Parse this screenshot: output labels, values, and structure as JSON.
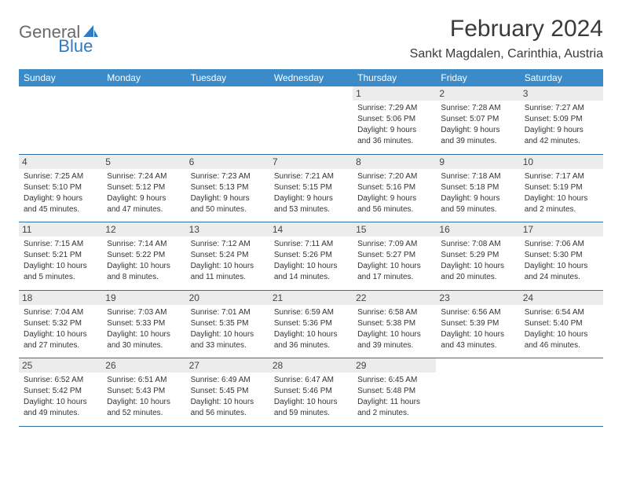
{
  "colors": {
    "header_bg": "#3b8bc9",
    "header_text": "#ffffff",
    "daynum_bg": "#ececec",
    "sep_line": "#2f6fa3",
    "title_color": "#3a3a3a",
    "logo_gray": "#6a6a6a",
    "logo_blue": "#2f7bbf",
    "body_text": "#333333",
    "page_bg": "#ffffff"
  },
  "typography": {
    "title_fontsize": 30,
    "location_fontsize": 16,
    "dow_fontsize": 12,
    "daynum_fontsize": 12,
    "info_fontsize": 10,
    "logo_fontsize": 22
  },
  "logo": {
    "part1": "General",
    "part2": "Blue"
  },
  "title": "February 2024",
  "location": "Sankt Magdalen, Carinthia, Austria",
  "dow": [
    "Sunday",
    "Monday",
    "Tuesday",
    "Wednesday",
    "Thursday",
    "Friday",
    "Saturday"
  ],
  "weeks": [
    [
      null,
      null,
      null,
      null,
      {
        "n": "1",
        "sr": "Sunrise: 7:29 AM",
        "ss": "Sunset: 5:06 PM",
        "d1": "Daylight: 9 hours",
        "d2": "and 36 minutes."
      },
      {
        "n": "2",
        "sr": "Sunrise: 7:28 AM",
        "ss": "Sunset: 5:07 PM",
        "d1": "Daylight: 9 hours",
        "d2": "and 39 minutes."
      },
      {
        "n": "3",
        "sr": "Sunrise: 7:27 AM",
        "ss": "Sunset: 5:09 PM",
        "d1": "Daylight: 9 hours",
        "d2": "and 42 minutes."
      }
    ],
    [
      {
        "n": "4",
        "sr": "Sunrise: 7:25 AM",
        "ss": "Sunset: 5:10 PM",
        "d1": "Daylight: 9 hours",
        "d2": "and 45 minutes."
      },
      {
        "n": "5",
        "sr": "Sunrise: 7:24 AM",
        "ss": "Sunset: 5:12 PM",
        "d1": "Daylight: 9 hours",
        "d2": "and 47 minutes."
      },
      {
        "n": "6",
        "sr": "Sunrise: 7:23 AM",
        "ss": "Sunset: 5:13 PM",
        "d1": "Daylight: 9 hours",
        "d2": "and 50 minutes."
      },
      {
        "n": "7",
        "sr": "Sunrise: 7:21 AM",
        "ss": "Sunset: 5:15 PM",
        "d1": "Daylight: 9 hours",
        "d2": "and 53 minutes."
      },
      {
        "n": "8",
        "sr": "Sunrise: 7:20 AM",
        "ss": "Sunset: 5:16 PM",
        "d1": "Daylight: 9 hours",
        "d2": "and 56 minutes."
      },
      {
        "n": "9",
        "sr": "Sunrise: 7:18 AM",
        "ss": "Sunset: 5:18 PM",
        "d1": "Daylight: 9 hours",
        "d2": "and 59 minutes."
      },
      {
        "n": "10",
        "sr": "Sunrise: 7:17 AM",
        "ss": "Sunset: 5:19 PM",
        "d1": "Daylight: 10 hours",
        "d2": "and 2 minutes."
      }
    ],
    [
      {
        "n": "11",
        "sr": "Sunrise: 7:15 AM",
        "ss": "Sunset: 5:21 PM",
        "d1": "Daylight: 10 hours",
        "d2": "and 5 minutes."
      },
      {
        "n": "12",
        "sr": "Sunrise: 7:14 AM",
        "ss": "Sunset: 5:22 PM",
        "d1": "Daylight: 10 hours",
        "d2": "and 8 minutes."
      },
      {
        "n": "13",
        "sr": "Sunrise: 7:12 AM",
        "ss": "Sunset: 5:24 PM",
        "d1": "Daylight: 10 hours",
        "d2": "and 11 minutes."
      },
      {
        "n": "14",
        "sr": "Sunrise: 7:11 AM",
        "ss": "Sunset: 5:26 PM",
        "d1": "Daylight: 10 hours",
        "d2": "and 14 minutes."
      },
      {
        "n": "15",
        "sr": "Sunrise: 7:09 AM",
        "ss": "Sunset: 5:27 PM",
        "d1": "Daylight: 10 hours",
        "d2": "and 17 minutes."
      },
      {
        "n": "16",
        "sr": "Sunrise: 7:08 AM",
        "ss": "Sunset: 5:29 PM",
        "d1": "Daylight: 10 hours",
        "d2": "and 20 minutes."
      },
      {
        "n": "17",
        "sr": "Sunrise: 7:06 AM",
        "ss": "Sunset: 5:30 PM",
        "d1": "Daylight: 10 hours",
        "d2": "and 24 minutes."
      }
    ],
    [
      {
        "n": "18",
        "sr": "Sunrise: 7:04 AM",
        "ss": "Sunset: 5:32 PM",
        "d1": "Daylight: 10 hours",
        "d2": "and 27 minutes."
      },
      {
        "n": "19",
        "sr": "Sunrise: 7:03 AM",
        "ss": "Sunset: 5:33 PM",
        "d1": "Daylight: 10 hours",
        "d2": "and 30 minutes."
      },
      {
        "n": "20",
        "sr": "Sunrise: 7:01 AM",
        "ss": "Sunset: 5:35 PM",
        "d1": "Daylight: 10 hours",
        "d2": "and 33 minutes."
      },
      {
        "n": "21",
        "sr": "Sunrise: 6:59 AM",
        "ss": "Sunset: 5:36 PM",
        "d1": "Daylight: 10 hours",
        "d2": "and 36 minutes."
      },
      {
        "n": "22",
        "sr": "Sunrise: 6:58 AM",
        "ss": "Sunset: 5:38 PM",
        "d1": "Daylight: 10 hours",
        "d2": "and 39 minutes."
      },
      {
        "n": "23",
        "sr": "Sunrise: 6:56 AM",
        "ss": "Sunset: 5:39 PM",
        "d1": "Daylight: 10 hours",
        "d2": "and 43 minutes."
      },
      {
        "n": "24",
        "sr": "Sunrise: 6:54 AM",
        "ss": "Sunset: 5:40 PM",
        "d1": "Daylight: 10 hours",
        "d2": "and 46 minutes."
      }
    ],
    [
      {
        "n": "25",
        "sr": "Sunrise: 6:52 AM",
        "ss": "Sunset: 5:42 PM",
        "d1": "Daylight: 10 hours",
        "d2": "and 49 minutes."
      },
      {
        "n": "26",
        "sr": "Sunrise: 6:51 AM",
        "ss": "Sunset: 5:43 PM",
        "d1": "Daylight: 10 hours",
        "d2": "and 52 minutes."
      },
      {
        "n": "27",
        "sr": "Sunrise: 6:49 AM",
        "ss": "Sunset: 5:45 PM",
        "d1": "Daylight: 10 hours",
        "d2": "and 56 minutes."
      },
      {
        "n": "28",
        "sr": "Sunrise: 6:47 AM",
        "ss": "Sunset: 5:46 PM",
        "d1": "Daylight: 10 hours",
        "d2": "and 59 minutes."
      },
      {
        "n": "29",
        "sr": "Sunrise: 6:45 AM",
        "ss": "Sunset: 5:48 PM",
        "d1": "Daylight: 11 hours",
        "d2": "and 2 minutes."
      },
      null,
      null
    ]
  ]
}
